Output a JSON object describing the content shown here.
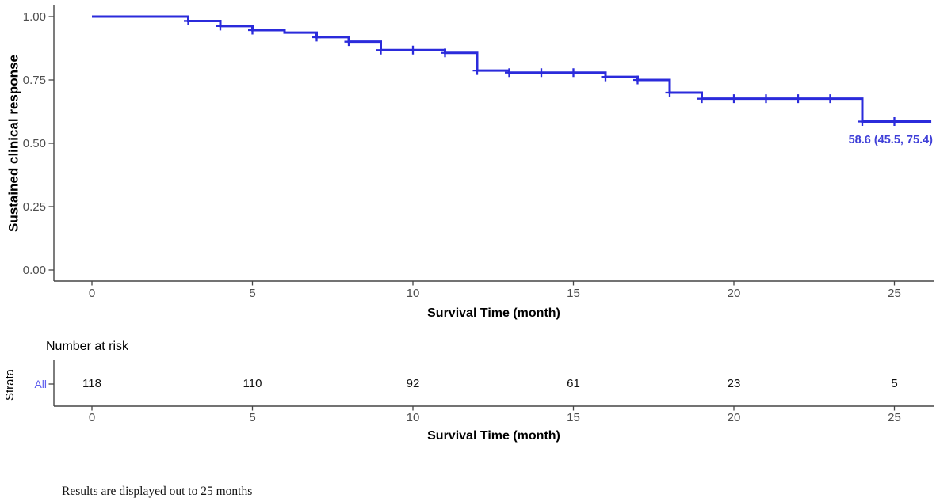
{
  "figure": {
    "background": "#ffffff",
    "axis_color": "#454545",
    "tick_label_color": "#4d4d4d"
  },
  "chart_data": {
    "type": "line",
    "subtype": "kaplan-meier-step-curve",
    "title": "",
    "xlabel": "Survival Time (month)",
    "ylabel": "Sustained clinical response",
    "xtick_values": [
      0,
      5,
      10,
      15,
      20,
      25
    ],
    "xtick_labels": [
      "0",
      "5",
      "10",
      "15",
      "20",
      "25"
    ],
    "ytick_values": [
      1.0,
      0.75,
      0.5,
      0.25,
      0.0
    ],
    "ytick_labels": [
      "1.00",
      "0.75",
      "0.50",
      "0.25",
      "0.00"
    ],
    "xlim": [
      -1.2,
      26.2
    ],
    "ylim": [
      0.0,
      1.04
    ],
    "grid": false,
    "legend_position": "none",
    "series": [
      {
        "name": "All",
        "color": "#2b2bdb",
        "label_color": "#4040d8",
        "steps": [
          [
            0,
            1.0
          ],
          [
            3,
            0.983
          ],
          [
            4,
            0.963
          ],
          [
            5,
            0.947
          ],
          [
            6,
            0.937
          ],
          [
            7,
            0.919
          ],
          [
            8,
            0.901
          ],
          [
            9,
            0.868
          ],
          [
            11,
            0.857
          ],
          [
            12,
            0.787
          ],
          [
            13,
            0.779
          ],
          [
            16,
            0.762
          ],
          [
            17,
            0.75
          ],
          [
            18,
            0.7
          ],
          [
            19,
            0.676
          ],
          [
            24,
            0.586
          ]
        ],
        "curve_end_time": 26.15,
        "censor_times": [
          3,
          4,
          5,
          7,
          8,
          9,
          10,
          11,
          12,
          13,
          14,
          15,
          16,
          17,
          18,
          19,
          20,
          21,
          22,
          23,
          24,
          25
        ],
        "final_estimate_label": "58.6 (45.5, 75.4)"
      }
    ],
    "risk_table": {
      "header": "Number at risk",
      "axis_label": "Strata",
      "xlabel": "Survival Time (month)",
      "times": [
        0,
        5,
        10,
        15,
        20,
        25
      ],
      "rows": [
        {
          "name": "All",
          "color": "#6060ef",
          "values": [
            "118",
            "110",
            "92",
            "61",
            "23",
            "5"
          ]
        }
      ]
    },
    "footnote": "Results are displayed out to 25 months"
  }
}
